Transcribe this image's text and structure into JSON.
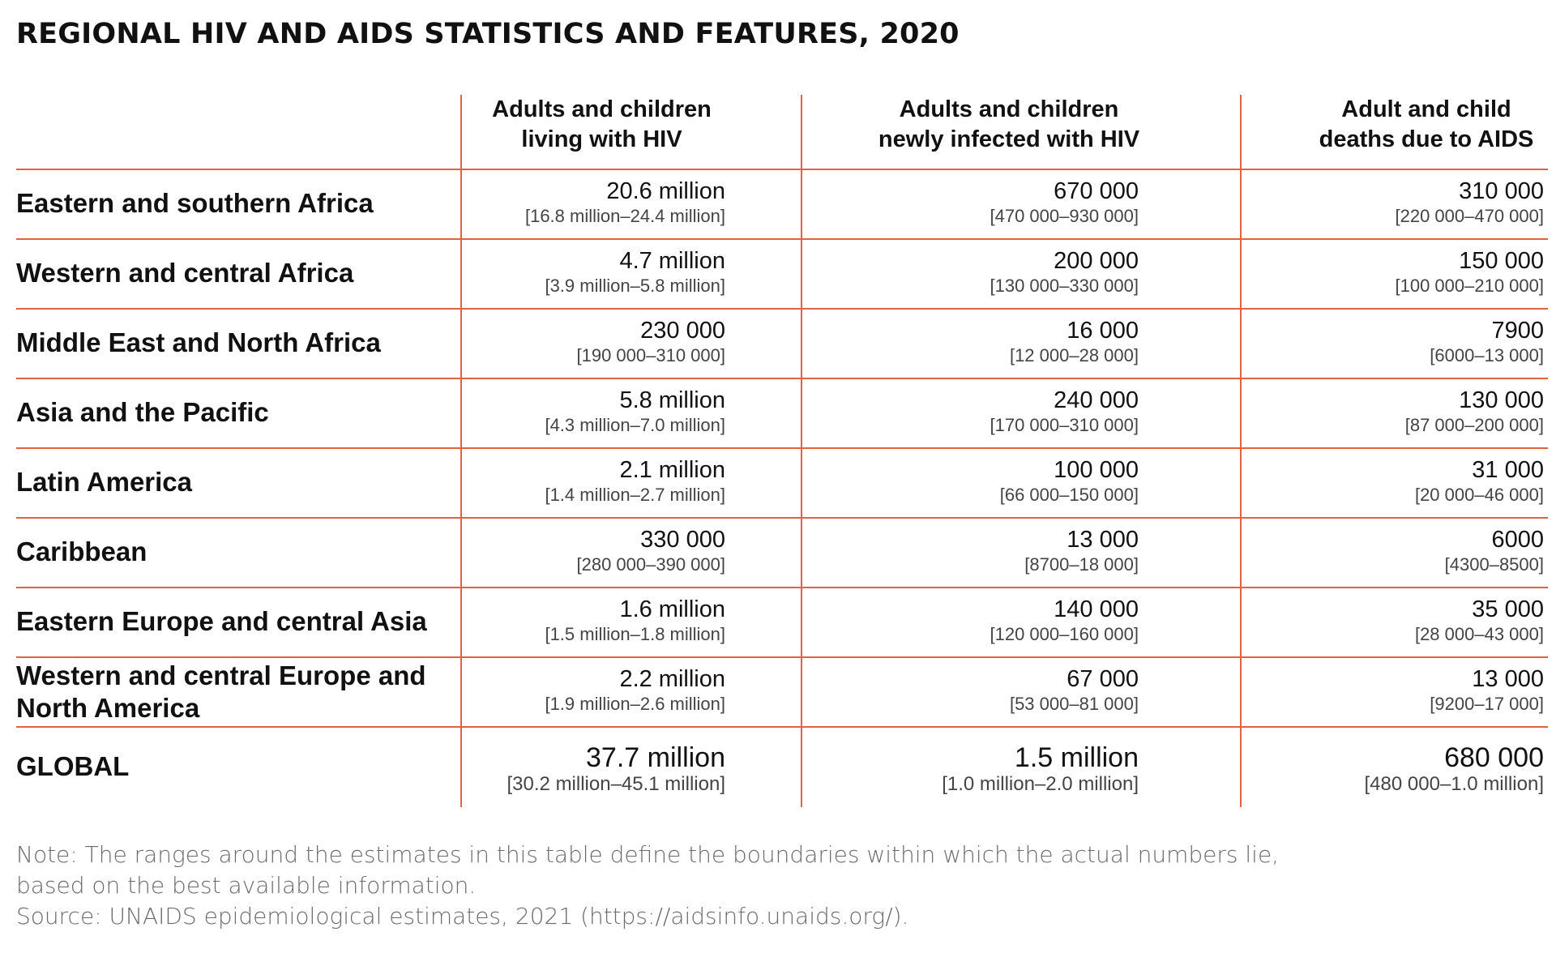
{
  "title": "REGIONAL HIV AND AIDS STATISTICS AND FEATURES, 2020",
  "columns": [
    {
      "line1": "Adults and children",
      "line2": "living with HIV"
    },
    {
      "line1": "Adults and children",
      "line2": "newly infected with HIV"
    },
    {
      "line1": "Adult and child",
      "line2": "deaths due to AIDS"
    }
  ],
  "rows": [
    {
      "label": "Eastern and southern Africa",
      "cells": [
        {
          "value": "20.6 million",
          "range": "[16.8 million–24.4 million]"
        },
        {
          "value": "670 000",
          "range": "[470 000–930 000]"
        },
        {
          "value": "310 000",
          "range": "[220 000–470 000]"
        }
      ]
    },
    {
      "label": "Western and central Africa",
      "cells": [
        {
          "value": "4.7 million",
          "range": "[3.9 million–5.8 million]"
        },
        {
          "value": "200 000",
          "range": "[130 000–330 000]"
        },
        {
          "value": "150 000",
          "range": "[100 000–210 000]"
        }
      ]
    },
    {
      "label": "Middle East and North Africa",
      "cells": [
        {
          "value": "230 000",
          "range": "[190 000–310 000]"
        },
        {
          "value": "16 000",
          "range": "[12 000–28 000]"
        },
        {
          "value": "7900",
          "range": "[6000–13 000]"
        }
      ]
    },
    {
      "label": "Asia and the Pacific",
      "cells": [
        {
          "value": "5.8 million",
          "range": "[4.3 million–7.0 million]"
        },
        {
          "value": "240 000",
          "range": "[170 000–310 000]"
        },
        {
          "value": "130 000",
          "range": "[87 000–200 000]"
        }
      ]
    },
    {
      "label": "Latin America",
      "cells": [
        {
          "value": "2.1 million",
          "range": "[1.4 million–2.7 million]"
        },
        {
          "value": "100 000",
          "range": "[66 000–150 000]"
        },
        {
          "value": "31 000",
          "range": "[20 000–46 000]"
        }
      ]
    },
    {
      "label": "Caribbean",
      "cells": [
        {
          "value": "330 000",
          "range": "[280 000–390 000]"
        },
        {
          "value": "13 000",
          "range": "[8700–18 000]"
        },
        {
          "value": "6000",
          "range": "[4300–8500]"
        }
      ]
    },
    {
      "label": "Eastern Europe and central Asia",
      "cells": [
        {
          "value": "1.6 million",
          "range": "[1.5 million–1.8 million]"
        },
        {
          "value": "140 000",
          "range": "[120 000–160 000]"
        },
        {
          "value": "35 000",
          "range": "[28 000–43 000]"
        }
      ]
    },
    {
      "label": "Western and central Europe and North America",
      "label_line1": "Western and central Europe and",
      "label_line2": "North America",
      "cells": [
        {
          "value": "2.2 million",
          "range": "[1.9 million–2.6 million]"
        },
        {
          "value": "67 000",
          "range": "[53 000–81 000]"
        },
        {
          "value": "13 000",
          "range": "[9200–17 000]"
        }
      ]
    }
  ],
  "global": {
    "label": "GLOBAL",
    "cells": [
      {
        "value": "37.7 million",
        "range": "[30.2 million–45.1 million]"
      },
      {
        "value": "1.5 million",
        "range": "[1.0 million–2.0 million]"
      },
      {
        "value": "680 000",
        "range": "[480 000–1.0 million]"
      }
    ]
  },
  "notes": {
    "line1": "Note: The ranges around the estimates in this table define the boundaries within which the actual numbers lie,",
    "line2": "based on the best available information.",
    "line3": "Source: UNAIDS epidemiological estimates, 2021 (https://aidsinfo.unaids.org/)."
  },
  "colors": {
    "rule": "#e0643f",
    "text": "#111111",
    "muted": "#6b6b6b"
  }
}
